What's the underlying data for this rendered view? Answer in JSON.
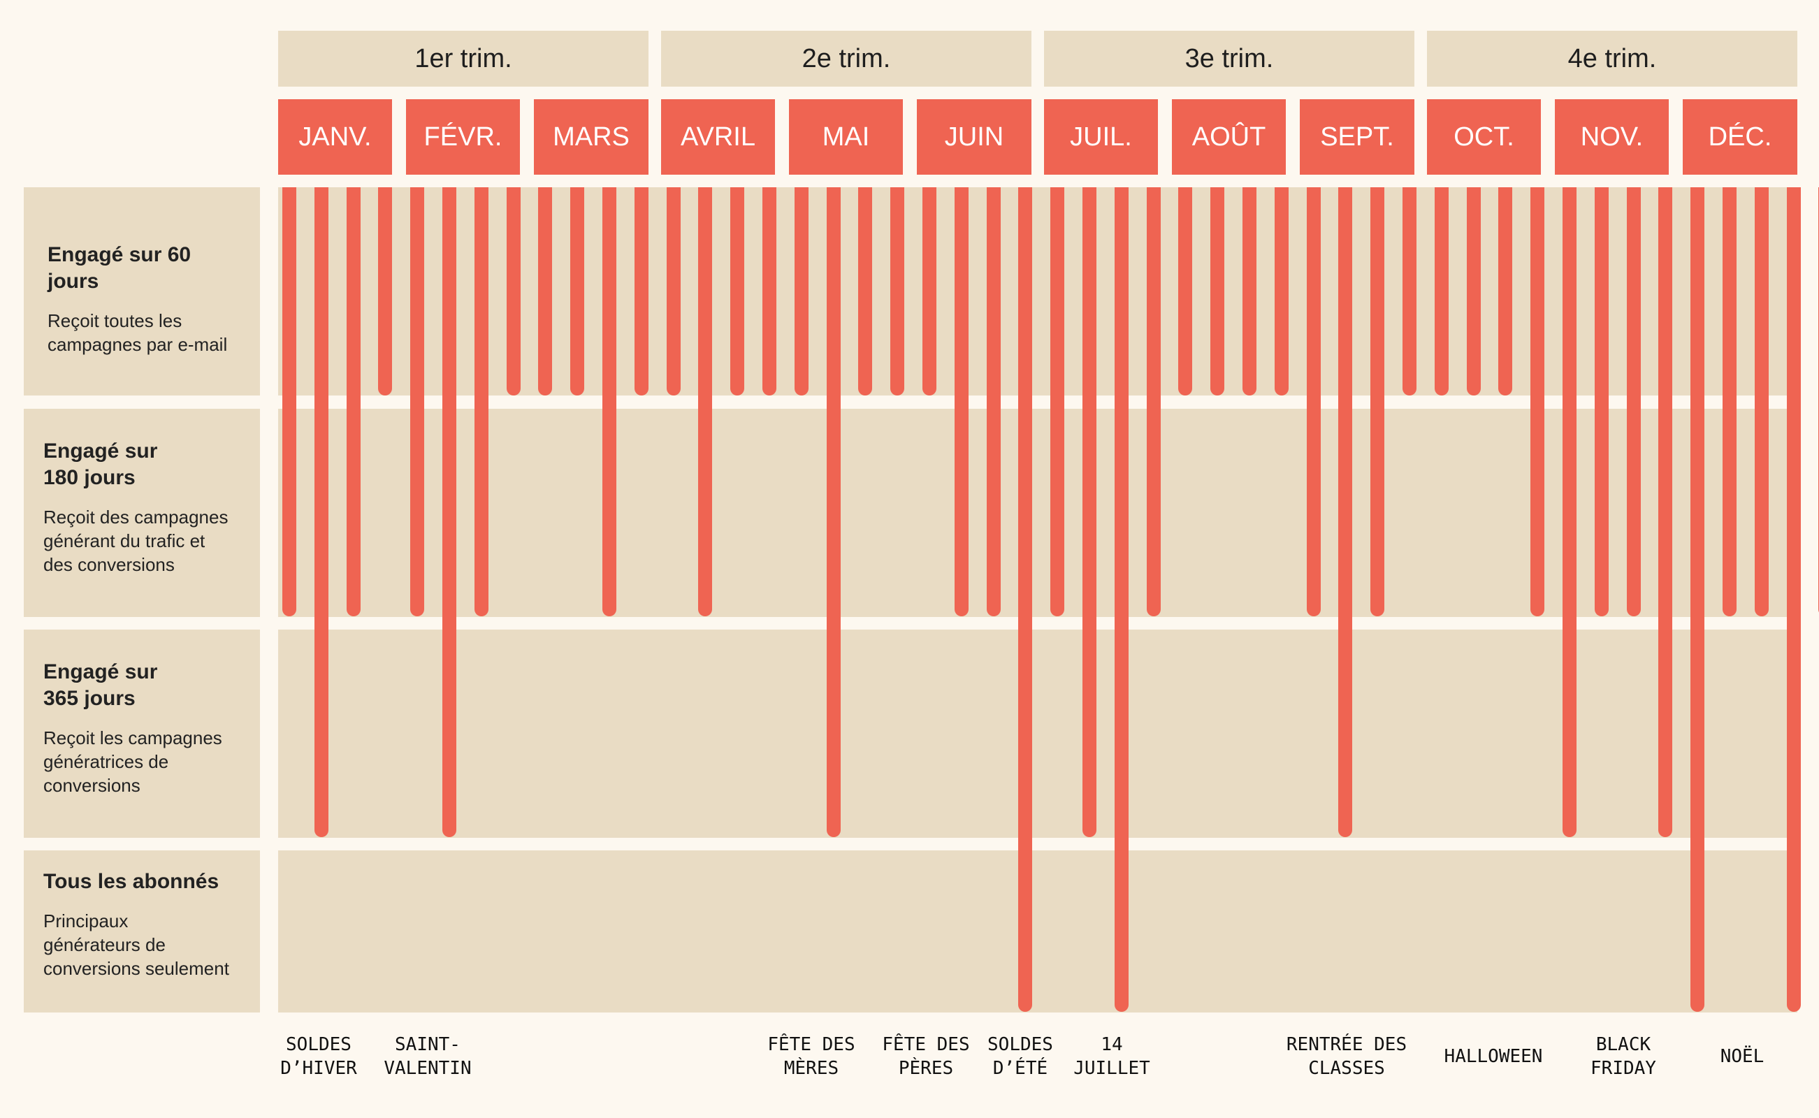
{
  "quarters": [
    "1er trim.",
    "2e trim.",
    "3e trim.",
    "4e trim."
  ],
  "months": [
    "JANV.",
    "FÉVR.",
    "MARS",
    "AVRIL",
    "MAI",
    "JUIN",
    "JUIL.",
    "AOÛT",
    "SEPT.",
    "OCT.",
    "NOV.",
    "DÉC."
  ],
  "segments": [
    {
      "title": "Engagé sur 60 jours",
      "description": "Reçoit toutes les\ncampagnes par e-mail"
    },
    {
      "title": "Engagé sur\n180 jours",
      "description": "Reçoit des campagnes\ngénérant du trafic et\ndes conversions"
    },
    {
      "title": "Engagé sur\n365 jours",
      "description": "Reçoit les campagnes\ngénératrices de\nconversions"
    },
    {
      "title": "Tous les abonnés",
      "description": "Principaux\ngénérateurs de\nconversions seulement"
    }
  ],
  "campaign_levels": [
    2,
    3,
    2,
    1,
    2,
    3,
    2,
    1,
    1,
    1,
    2,
    1,
    1,
    2,
    1,
    1,
    1,
    3,
    1,
    1,
    1,
    2,
    2,
    4,
    2,
    3,
    4,
    2,
    1,
    1,
    1,
    1,
    2,
    3,
    2,
    1,
    1,
    1,
    1,
    2,
    3,
    2,
    2,
    3,
    4,
    2,
    2,
    4,
    2
  ],
  "events": [
    {
      "label": "SOLDES\nD’HIVER"
    },
    {
      "label": "SAINT-\nVALENTIN"
    },
    {
      "label": "FÊTE DES\nMÈRES"
    },
    {
      "label": "FÊTE DES\nPÈRES"
    },
    {
      "label": "SOLDES\nD’ÉTÉ"
    },
    {
      "label": "14\nJUILLET"
    },
    {
      "label": "RENTRÉE DES\nCLASSES"
    },
    {
      "label": "HALLOWEEN"
    },
    {
      "label": "BLACK\nFRIDAY"
    },
    {
      "label": "NOËL"
    }
  ],
  "colors": {
    "background": "#fdf8f0",
    "panel": "#e9dcc4",
    "accent": "#ef6452",
    "text": "#222222"
  }
}
